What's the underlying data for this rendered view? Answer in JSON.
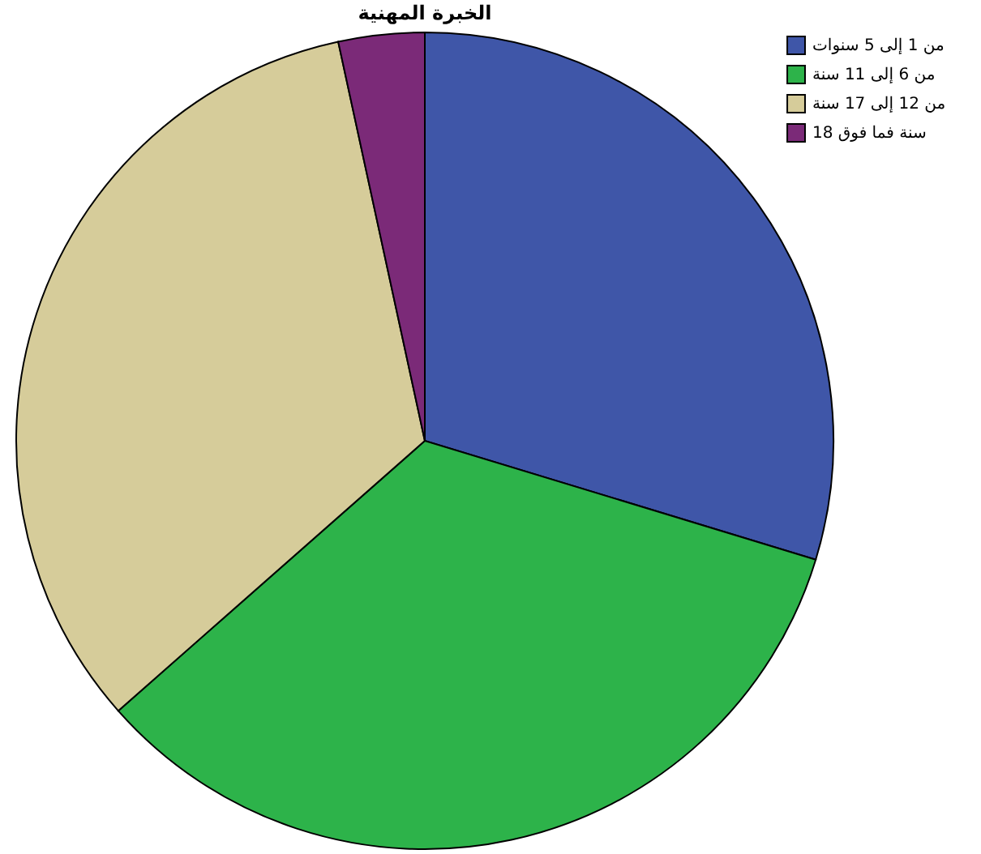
{
  "chart_data": {
    "type": "pie",
    "title": "الخبرة المهنية",
    "categories": [
      "من 1 إلى 5 سنوات",
      "من 6 إلى 11 سنة",
      "من 12 إلى 17 سنة",
      "18 سنة فما فوق"
    ],
    "values": [
      29.7,
      33.8,
      33.1,
      3.4
    ],
    "colors": [
      "#3f56a8",
      "#2db34a",
      "#d6cc9a",
      "#7b2a78"
    ],
    "legend": "top right"
  }
}
